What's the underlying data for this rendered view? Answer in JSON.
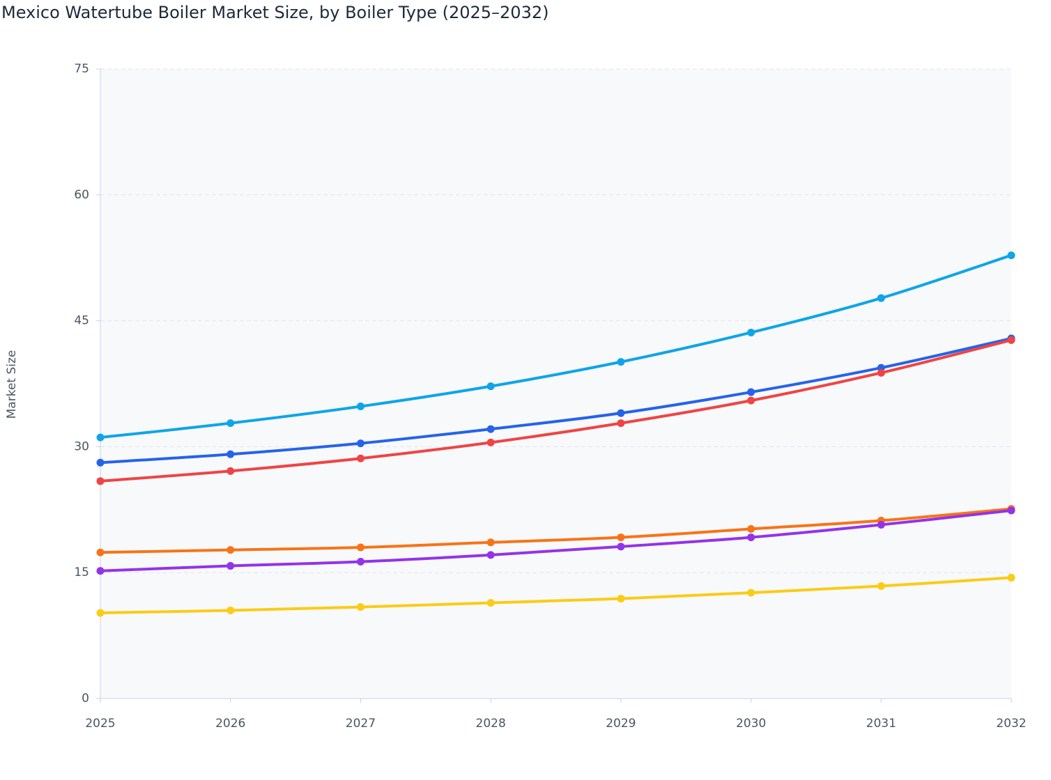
{
  "chart_data": {
    "type": "line",
    "title": "Mexico Watertube Boiler Market Size, by Boiler Type (2025–2032)",
    "y_label": "Market Size",
    "categories": [
      "2025",
      "2026",
      "2027",
      "2028",
      "2029",
      "2030",
      "2031",
      "2032"
    ],
    "series": [
      {
        "color": "#0ea5e9",
        "values": [
          31.1,
          32.8,
          34.8,
          37.2,
          40.1,
          43.6,
          47.7,
          52.8
        ]
      },
      {
        "color": "#2563eb",
        "values": [
          28.1,
          29.1,
          30.4,
          32.1,
          34.0,
          36.5,
          39.4,
          42.9
        ]
      },
      {
        "color": "#ef4444",
        "values": [
          25.9,
          27.1,
          28.6,
          30.5,
          32.8,
          35.5,
          38.8,
          42.7
        ]
      },
      {
        "color": "#f97316",
        "values": [
          17.4,
          17.7,
          18.0,
          18.6,
          19.2,
          20.2,
          21.2,
          22.6
        ]
      },
      {
        "color": "#9333ea",
        "values": [
          15.2,
          15.8,
          16.3,
          17.1,
          18.1,
          19.2,
          20.7,
          22.4
        ]
      },
      {
        "color": "#facc15",
        "values": [
          10.2,
          10.5,
          10.9,
          11.4,
          11.9,
          12.6,
          13.4,
          14.4
        ]
      }
    ],
    "ylim": [
      0,
      75
    ],
    "yticks": [
      0,
      15,
      30,
      45,
      60,
      75
    ],
    "grid": true
  }
}
